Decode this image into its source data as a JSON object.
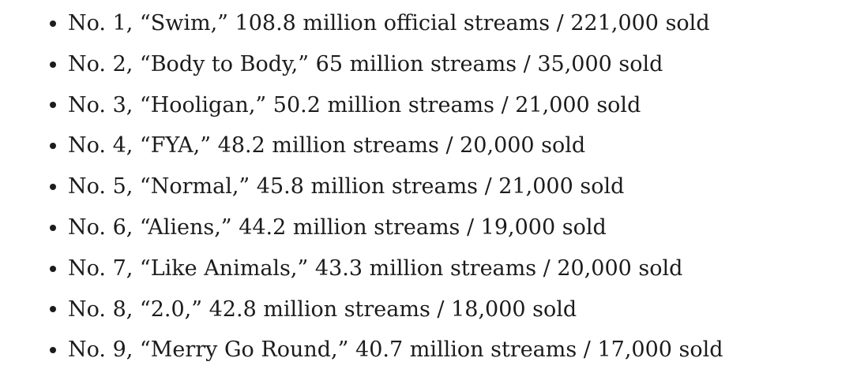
{
  "list": {
    "items": [
      {
        "text": "No. 1, “Swim,” 108.8 million official streams / 221,000 sold"
      },
      {
        "text": "No. 2, “Body to Body,” 65 million streams / 35,000 sold"
      },
      {
        "text": "No. 3, “Hooligan,” 50.2 million streams / 21,000 sold"
      },
      {
        "text": "No. 4, “FYA,” 48.2 million streams / 20,000 sold"
      },
      {
        "text": "No. 5, “Normal,” 45.8 million streams / 21,000 sold"
      },
      {
        "text": "No. 6, “Aliens,” 44.2 million streams / 19,000 sold"
      },
      {
        "text": "No. 7, “Like Animals,” 43.3 million streams / 20,000 sold"
      },
      {
        "text": "No. 8, “2.0,” 42.8 million streams / 18,000 sold"
      },
      {
        "text": "No. 9, “Merry Go Round,” 40.7 million streams / 17,000 sold"
      }
    ]
  }
}
